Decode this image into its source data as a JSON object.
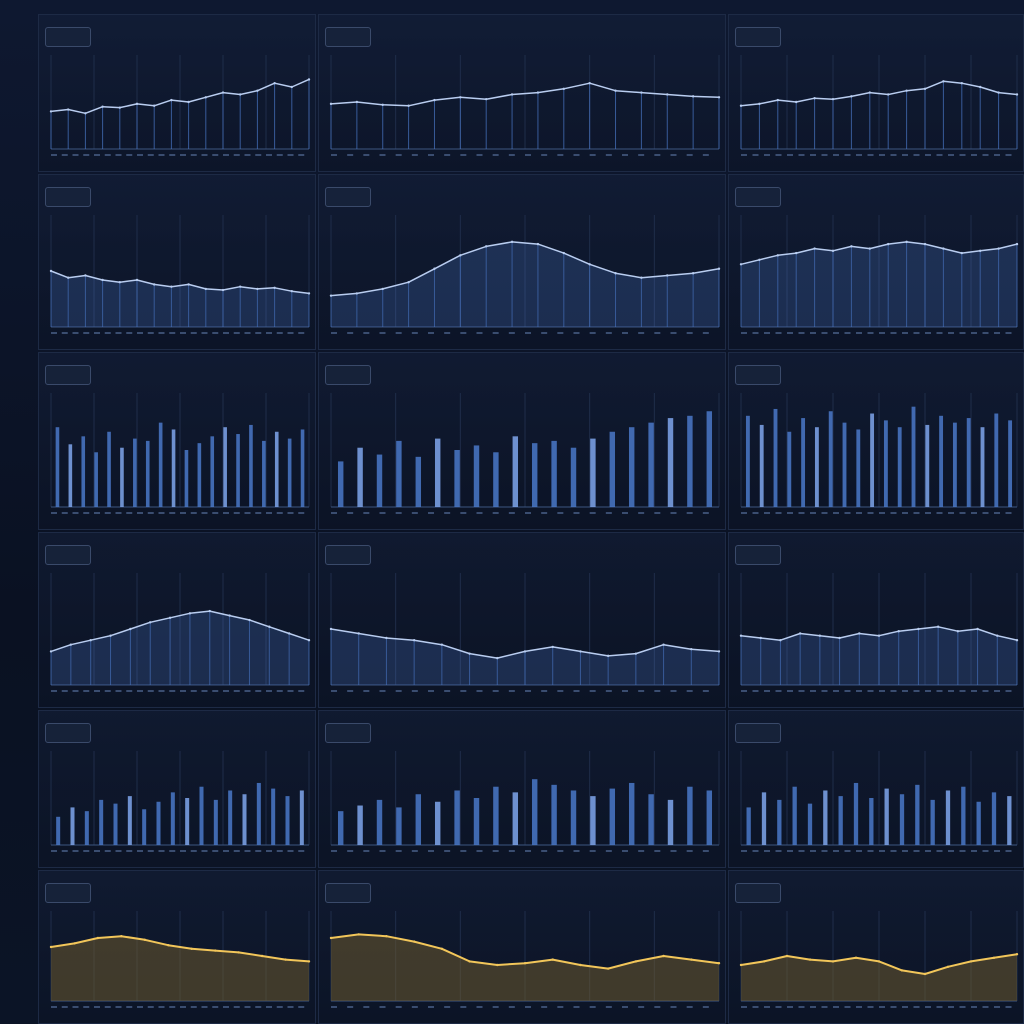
{
  "dashboard": {
    "rows": 6,
    "cols": 3,
    "colors": {
      "background": "#0b1324",
      "panel_border": "#1d2a45",
      "line_blue": "#b9cdf0",
      "bar_blue": "#4a78c8",
      "bar_bright": "#7fa6ec",
      "line_gold": "#f2c65a",
      "fill_gold": "#6b5a2e"
    },
    "icons": [
      "panel-menu-icon"
    ]
  },
  "chart_data": [
    {
      "type": "line",
      "series": [
        {
          "values": [
            40,
            42,
            38,
            45,
            44,
            48,
            46,
            52,
            50,
            55,
            60,
            58,
            62,
            70,
            66,
            74
          ]
        }
      ],
      "ylim": [
        0,
        100
      ]
    },
    {
      "type": "line",
      "series": [
        {
          "values": [
            48,
            50,
            47,
            46,
            52,
            55,
            53,
            58,
            60,
            64,
            70,
            62,
            60,
            58,
            56,
            55
          ]
        }
      ],
      "ylim": [
        0,
        100
      ]
    },
    {
      "type": "line",
      "series": [
        {
          "values": [
            46,
            48,
            52,
            50,
            54,
            53,
            56,
            60,
            58,
            62,
            64,
            72,
            70,
            66,
            60,
            58
          ]
        }
      ],
      "ylim": [
        0,
        100
      ]
    },
    {
      "type": "area",
      "series": [
        {
          "values": [
            50,
            44,
            46,
            42,
            40,
            42,
            38,
            36,
            38,
            34,
            33,
            36,
            34,
            35,
            32,
            30
          ]
        }
      ],
      "ylim": [
        0,
        100
      ]
    },
    {
      "type": "area",
      "series": [
        {
          "values": [
            28,
            30,
            34,
            40,
            52,
            64,
            72,
            76,
            74,
            66,
            56,
            48,
            44,
            46,
            48,
            52
          ]
        }
      ],
      "ylim": [
        0,
        100
      ]
    },
    {
      "type": "area",
      "series": [
        {
          "values": [
            56,
            60,
            64,
            66,
            70,
            68,
            72,
            70,
            74,
            76,
            74,
            70,
            66,
            68,
            70,
            74
          ]
        }
      ],
      "ylim": [
        0,
        100
      ]
    },
    {
      "type": "bar",
      "values": [
        70,
        55,
        62,
        48,
        66,
        52,
        60,
        58,
        74,
        68,
        50,
        56,
        62,
        70,
        64,
        72,
        58,
        66,
        60,
        68
      ],
      "ylim": [
        0,
        100
      ]
    },
    {
      "type": "bar",
      "values": [
        40,
        52,
        46,
        58,
        44,
        60,
        50,
        54,
        48,
        62,
        56,
        58,
        52,
        60,
        66,
        70,
        74,
        78,
        80,
        84
      ],
      "ylim": [
        0,
        100
      ]
    },
    {
      "type": "bar",
      "values": [
        80,
        72,
        86,
        66,
        78,
        70,
        84,
        74,
        68,
        82,
        76,
        70,
        88,
        72,
        80,
        74,
        78,
        70,
        82,
        76
      ],
      "ylim": [
        0,
        100
      ]
    },
    {
      "type": "area",
      "series": [
        {
          "values": [
            30,
            36,
            40,
            44,
            50,
            56,
            60,
            64,
            66,
            62,
            58,
            52,
            46,
            40
          ]
        }
      ],
      "ylim": [
        0,
        100
      ]
    },
    {
      "type": "area",
      "series": [
        {
          "values": [
            50,
            46,
            42,
            40,
            36,
            28,
            24,
            30,
            34,
            30,
            26,
            28,
            36,
            32,
            30
          ]
        }
      ],
      "ylim": [
        0,
        100
      ]
    },
    {
      "type": "area",
      "series": [
        {
          "values": [
            44,
            42,
            40,
            46,
            44,
            42,
            46,
            44,
            48,
            50,
            52,
            48,
            50,
            44,
            40
          ]
        }
      ],
      "ylim": [
        0,
        100
      ]
    },
    {
      "type": "bar",
      "values": [
        30,
        40,
        36,
        48,
        44,
        52,
        38,
        46,
        56,
        50,
        62,
        48,
        58,
        54,
        66,
        60,
        52,
        58
      ],
      "ylim": [
        0,
        100
      ]
    },
    {
      "type": "bar",
      "values": [
        36,
        42,
        48,
        40,
        54,
        46,
        58,
        50,
        62,
        56,
        70,
        64,
        58,
        52,
        60,
        66,
        54,
        48,
        62,
        58
      ],
      "ylim": [
        0,
        100
      ]
    },
    {
      "type": "bar",
      "values": [
        40,
        56,
        48,
        62,
        44,
        58,
        52,
        66,
        50,
        60,
        54,
        64,
        48,
        58,
        62,
        46,
        56,
        52
      ],
      "ylim": [
        0,
        100
      ]
    },
    {
      "type": "area",
      "series": [
        {
          "values": [
            60,
            64,
            70,
            72,
            68,
            62,
            58,
            56,
            54,
            50,
            46,
            44
          ]
        }
      ],
      "ylim": [
        0,
        100
      ]
    },
    {
      "type": "area",
      "series": [
        {
          "values": [
            70,
            74,
            72,
            66,
            58,
            44,
            40,
            42,
            46,
            40,
            36,
            44,
            50,
            46,
            42
          ]
        }
      ],
      "ylim": [
        0,
        100
      ]
    },
    {
      "type": "area",
      "series": [
        {
          "values": [
            40,
            44,
            50,
            46,
            44,
            48,
            44,
            34,
            30,
            38,
            44,
            48,
            52
          ]
        }
      ],
      "ylim": [
        0,
        100
      ]
    }
  ]
}
